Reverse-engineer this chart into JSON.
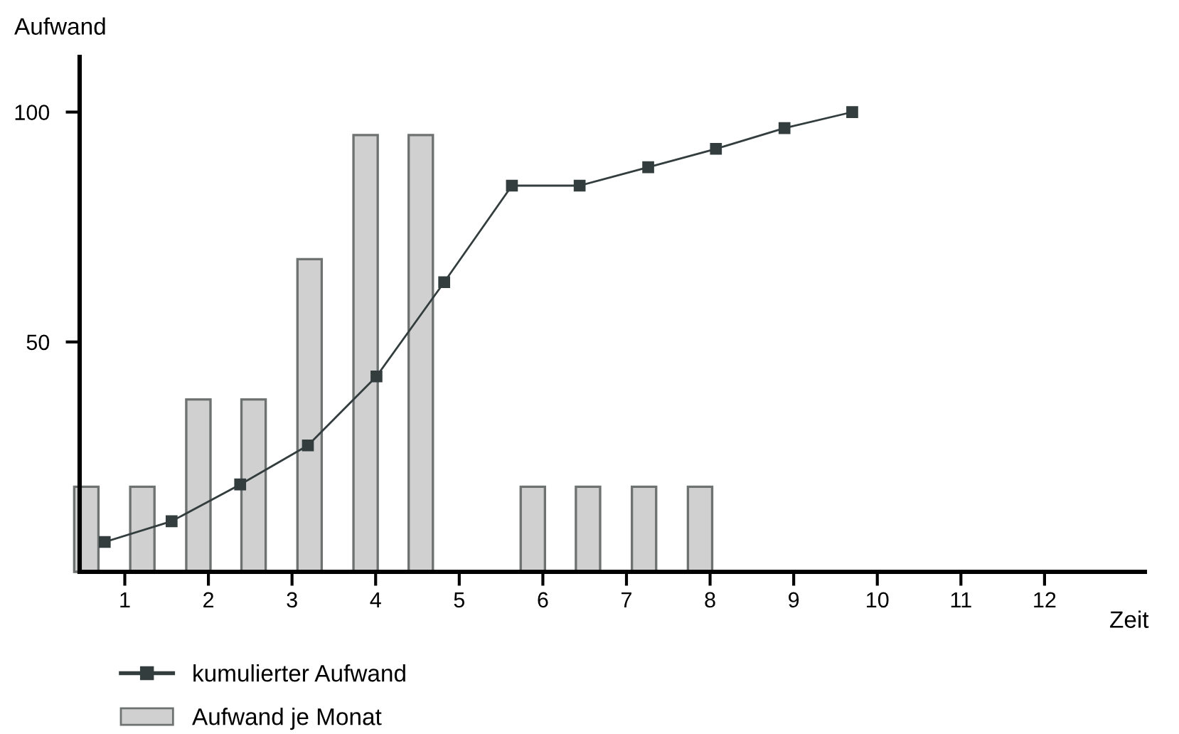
{
  "chart_data": {
    "type": "bar",
    "xlabel": "Zeit",
    "ylabel": "Aufwand",
    "xlim": [
      0.46,
      13.2
    ],
    "ylim": [
      0,
      112
    ],
    "xticks": [
      1,
      2,
      3,
      4,
      5,
      6,
      7,
      8,
      9,
      10,
      11,
      12
    ],
    "yticks": [
      50,
      100
    ],
    "grid": false,
    "legend": "bottom left",
    "series": [
      {
        "name": "kumulierter Aufwand",
        "type": "line",
        "color": "#333d3d",
        "marker": "square",
        "x": [
          0.76,
          1.56,
          2.38,
          3.19,
          4.01,
          4.82,
          5.63,
          6.44,
          7.26,
          8.07,
          8.89,
          9.7
        ],
        "values": [
          6.5,
          11,
          19,
          27.5,
          42.5,
          63,
          84,
          84,
          88,
          92,
          96.5,
          100
        ]
      },
      {
        "name": "Aufwand je Monat",
        "color": "#d0d0d0",
        "x": [
          0.54,
          1.21,
          1.88,
          2.54,
          3.21,
          3.88,
          4.54,
          5.21,
          5.88,
          6.54,
          7.21,
          7.88
        ],
        "values": [
          18.5,
          18.5,
          37.5,
          37.5,
          68,
          95,
          95,
          null,
          18.5,
          18.5,
          18.5,
          18.5
        ]
      }
    ]
  }
}
